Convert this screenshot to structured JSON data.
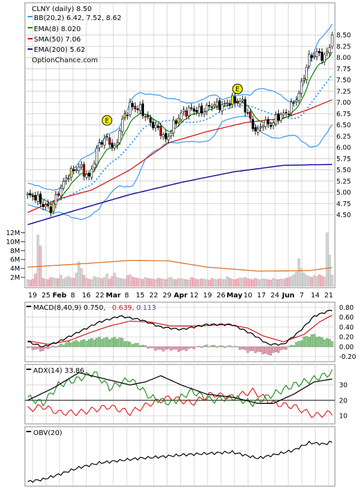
{
  "chart_data": [
    {
      "type": "candlestick",
      "symbol_label": "CLNY (daily) 8.50",
      "watermark": "OptionChance.com",
      "legend": [
        {
          "label": "BB(20,2) 6.42, 7.52, 8.62",
          "color": "#3399ee"
        },
        {
          "label": "EMA(8) 8.020",
          "color": "#118811"
        },
        {
          "label": "SMA(50) 7.06",
          "color": "#dd1111"
        },
        {
          "label": "EMA(200) 5.62",
          "color": "#111199"
        }
      ],
      "price_axis_ticks": [
        "8.50",
        "8.25",
        "8.00",
        "7.75",
        "7.50",
        "7.25",
        "7.00",
        "6.75",
        "6.50",
        "6.25",
        "6.00",
        "5.75",
        "5.50",
        "5.25",
        "5.00",
        "4.75",
        "4.50"
      ],
      "ylim": [
        4.2,
        8.85
      ],
      "volume_axis_ticks": [
        "12M",
        "10M",
        "8M",
        "6M",
        "4M",
        "2M"
      ],
      "x_labels": [
        "19",
        "25",
        "Feb",
        "8",
        "16",
        "22",
        "Mar",
        "8",
        "15",
        "22",
        "29",
        "Apr",
        "12",
        "19",
        "26",
        "May",
        "10",
        "17",
        "24",
        "Jun",
        "7",
        "14",
        "21"
      ],
      "earnings_markers": [
        "E",
        "E"
      ],
      "close_anchors": [
        [
          0,
          4.92
        ],
        [
          3,
          4.9
        ],
        [
          6,
          4.72
        ],
        [
          9,
          4.62
        ],
        [
          12,
          5.0
        ],
        [
          16,
          5.4
        ],
        [
          20,
          5.58
        ],
        [
          24,
          5.32
        ],
        [
          28,
          6.1
        ],
        [
          31,
          6.2
        ],
        [
          34,
          5.95
        ],
        [
          37,
          6.6
        ],
        [
          40,
          6.92
        ],
        [
          44,
          6.85
        ],
        [
          48,
          6.55
        ],
        [
          52,
          6.35
        ],
        [
          54,
          6.15
        ],
        [
          57,
          6.5
        ],
        [
          60,
          6.75
        ],
        [
          64,
          6.85
        ],
        [
          68,
          6.8
        ],
        [
          72,
          6.95
        ],
        [
          76,
          6.92
        ],
        [
          80,
          7.05
        ],
        [
          84,
          7.0
        ],
        [
          86,
          6.75
        ],
        [
          88,
          6.45
        ],
        [
          90,
          6.35
        ],
        [
          92,
          6.55
        ],
        [
          95,
          6.5
        ],
        [
          98,
          6.7
        ],
        [
          101,
          6.75
        ],
        [
          104,
          7.0
        ],
        [
          106,
          7.2
        ],
        [
          108,
          7.6
        ],
        [
          110,
          8.0
        ],
        [
          113,
          8.1
        ],
        [
          116,
          8.0
        ],
        [
          118,
          8.25
        ],
        [
          119,
          8.5
        ]
      ],
      "ema200_anchors": [
        [
          0,
          4.28
        ],
        [
          20,
          4.62
        ],
        [
          40,
          4.95
        ],
        [
          60,
          5.22
        ],
        [
          80,
          5.45
        ],
        [
          100,
          5.6
        ],
        [
          119,
          5.62
        ]
      ],
      "sma50_anchors": [
        [
          0,
          4.55
        ],
        [
          12,
          4.85
        ],
        [
          25,
          5.05
        ],
        [
          40,
          5.5
        ],
        [
          55,
          6.1
        ],
        [
          70,
          6.35
        ],
        [
          85,
          6.55
        ],
        [
          100,
          6.65
        ],
        [
          110,
          6.85
        ],
        [
          119,
          7.06
        ]
      ],
      "volume_millions": [
        1.5,
        1.4,
        1.6,
        2.8,
        11.5,
        9.0,
        1.8,
        1.6,
        1.5,
        2.0,
        1.9,
        1.8,
        1.7,
        2.5,
        1.6,
        2.0,
        2.2,
        1.9,
        1.8,
        3.0,
        5.5,
        4.0,
        2.5,
        1.8,
        1.6,
        1.5,
        2.2,
        2.0,
        1.9,
        1.7,
        2.0,
        2.8,
        1.6,
        2.2,
        3.0,
        2.0,
        1.8,
        1.7,
        1.6,
        2.4,
        2.6,
        2.1,
        1.9,
        1.8,
        1.7,
        1.6,
        2.0,
        1.8,
        1.7,
        1.6,
        1.5,
        1.8,
        1.7,
        1.6,
        1.5,
        1.9,
        2.0,
        1.6,
        1.5,
        1.8,
        1.7,
        1.6,
        1.5,
        1.4,
        2.0,
        1.8,
        1.6,
        1.5,
        1.7,
        1.6,
        1.5,
        1.4,
        1.8,
        1.6,
        1.5,
        1.7,
        1.6,
        1.5,
        2.2,
        1.8,
        1.6,
        1.5,
        1.7,
        1.9,
        1.8,
        2.0,
        1.7,
        1.6,
        1.5,
        1.8,
        1.6,
        1.5,
        1.7,
        1.6,
        1.5,
        1.4,
        1.8,
        1.6,
        1.5,
        1.7,
        1.6,
        1.8,
        2.0,
        2.2,
        2.6,
        3.2,
        6.2,
        4.0,
        3.0,
        2.5,
        2.2,
        2.0,
        2.4,
        2.2,
        2.6,
        2.3,
        2.1,
        12.0,
        7.0,
        2.5
      ],
      "volume_avg_anchors": [
        [
          0,
          4.3
        ],
        [
          20,
          5.0
        ],
        [
          40,
          5.8
        ],
        [
          55,
          5.7
        ],
        [
          70,
          4.3
        ],
        [
          90,
          3.4
        ],
        [
          110,
          3.5
        ],
        [
          119,
          4.2
        ]
      ]
    },
    {
      "type": "line",
      "label": "MACD(8,40,9) 0.750,",
      "label_values": [
        {
          "text": "0.639,",
          "color": "#dd1111"
        },
        {
          "text": "0.113",
          "color": "#2255cc"
        }
      ],
      "axis_ticks": [
        "0.80",
        "0.60",
        "0.40",
        "0.20",
        "0.00",
        "-0.20"
      ],
      "ylim": [
        -0.26,
        0.86
      ],
      "macd_anchors": [
        [
          0,
          0.1
        ],
        [
          6,
          0.0
        ],
        [
          12,
          0.1
        ],
        [
          20,
          0.3
        ],
        [
          28,
          0.5
        ],
        [
          36,
          0.62
        ],
        [
          44,
          0.55
        ],
        [
          52,
          0.4
        ],
        [
          60,
          0.35
        ],
        [
          70,
          0.45
        ],
        [
          80,
          0.45
        ],
        [
          88,
          0.25
        ],
        [
          94,
          0.05
        ],
        [
          100,
          0.05
        ],
        [
          106,
          0.3
        ],
        [
          112,
          0.62
        ],
        [
          119,
          0.75
        ]
      ],
      "signal_anchors": [
        [
          0,
          0.12
        ],
        [
          8,
          0.05
        ],
        [
          16,
          0.12
        ],
        [
          24,
          0.28
        ],
        [
          32,
          0.42
        ],
        [
          40,
          0.52
        ],
        [
          48,
          0.5
        ],
        [
          56,
          0.42
        ],
        [
          66,
          0.42
        ],
        [
          78,
          0.45
        ],
        [
          86,
          0.38
        ],
        [
          92,
          0.22
        ],
        [
          100,
          0.1
        ],
        [
          108,
          0.25
        ],
        [
          114,
          0.5
        ],
        [
          119,
          0.64
        ]
      ]
    },
    {
      "type": "line",
      "label": "ADX(14) 33.86",
      "axis_ticks": [
        "30",
        "20",
        "10"
      ],
      "ylim": [
        6,
        42
      ],
      "adx_anchors": [
        [
          0,
          20
        ],
        [
          10,
          28
        ],
        [
          20,
          38
        ],
        [
          30,
          34
        ],
        [
          40,
          30
        ],
        [
          46,
          32
        ],
        [
          52,
          36
        ],
        [
          60,
          30
        ],
        [
          70,
          24
        ],
        [
          80,
          22
        ],
        [
          90,
          18
        ],
        [
          96,
          18
        ],
        [
          104,
          24
        ],
        [
          112,
          32
        ],
        [
          119,
          33.86
        ]
      ],
      "plus_di_anchors": [
        [
          0,
          22
        ],
        [
          6,
          18
        ],
        [
          12,
          30
        ],
        [
          20,
          34
        ],
        [
          26,
          38
        ],
        [
          32,
          28
        ],
        [
          40,
          34
        ],
        [
          48,
          22
        ],
        [
          56,
          18
        ],
        [
          64,
          26
        ],
        [
          72,
          20
        ],
        [
          80,
          22
        ],
        [
          88,
          18
        ],
        [
          96,
          24
        ],
        [
          104,
          30
        ],
        [
          112,
          34
        ],
        [
          119,
          38
        ]
      ],
      "minus_di_anchors": [
        [
          0,
          14
        ],
        [
          6,
          16
        ],
        [
          12,
          12
        ],
        [
          20,
          12
        ],
        [
          26,
          14
        ],
        [
          32,
          16
        ],
        [
          40,
          12
        ],
        [
          48,
          18
        ],
        [
          56,
          22
        ],
        [
          64,
          18
        ],
        [
          72,
          24
        ],
        [
          80,
          22
        ],
        [
          88,
          26
        ],
        [
          96,
          18
        ],
        [
          104,
          16
        ],
        [
          112,
          10
        ],
        [
          119,
          12
        ]
      ]
    },
    {
      "type": "line",
      "label": "OBV(20)",
      "obv_anchors": [
        [
          0,
          0.05
        ],
        [
          6,
          0.1
        ],
        [
          12,
          0.2
        ],
        [
          20,
          0.35
        ],
        [
          28,
          0.45
        ],
        [
          36,
          0.5
        ],
        [
          44,
          0.55
        ],
        [
          52,
          0.58
        ],
        [
          60,
          0.62
        ],
        [
          70,
          0.65
        ],
        [
          80,
          0.68
        ],
        [
          86,
          0.6
        ],
        [
          90,
          0.55
        ],
        [
          96,
          0.62
        ],
        [
          104,
          0.72
        ],
        [
          110,
          0.88
        ],
        [
          116,
          0.85
        ],
        [
          119,
          0.9
        ]
      ]
    }
  ]
}
